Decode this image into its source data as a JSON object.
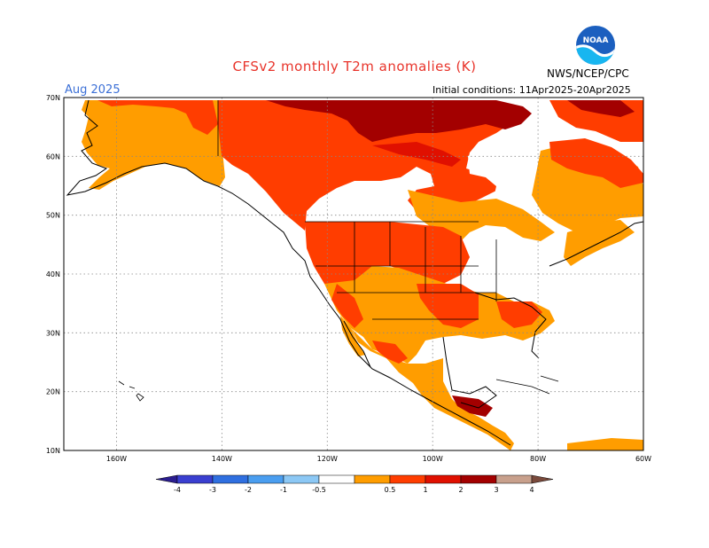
{
  "header": {
    "title": "CFSv2 monthly T2m anomalies (K)",
    "month": "Aug 2025",
    "initial_conditions": "Initial conditions: 11Apr2025-20Apr2025",
    "agency": "NWS/NCEP/CPC",
    "logo_text": "NOAA"
  },
  "map": {
    "lat_labels": [
      "70N",
      "60N",
      "50N",
      "40N",
      "30N",
      "20N",
      "10N"
    ],
    "lon_labels": [
      "160W",
      "140W",
      "120W",
      "100W",
      "80W",
      "60W"
    ],
    "lat_range": [
      10,
      70
    ],
    "lon_range": [
      -170,
      -60
    ]
  },
  "legend": {
    "labels": [
      "-4",
      "-3",
      "-2",
      "-1",
      "-0.5",
      "0.5",
      "1",
      "2",
      "3",
      "4"
    ],
    "colors": [
      "#2b1d8f",
      "#3a3fd0",
      "#2f6fe0",
      "#4a9ef0",
      "#8cc8f5",
      "#ffffff",
      "#ff9d00",
      "#ff3d00",
      "#e01000",
      "#a30000",
      "#c8a08c",
      "#7a4a3c"
    ]
  },
  "colors": {
    "title": "#e8332a",
    "month": "#3b6fd6",
    "anom_0_5_1": "#ff9d00",
    "anom_1_2": "#ff3d00",
    "anom_2_3": "#e01000",
    "anom_3_4": "#a30000"
  }
}
